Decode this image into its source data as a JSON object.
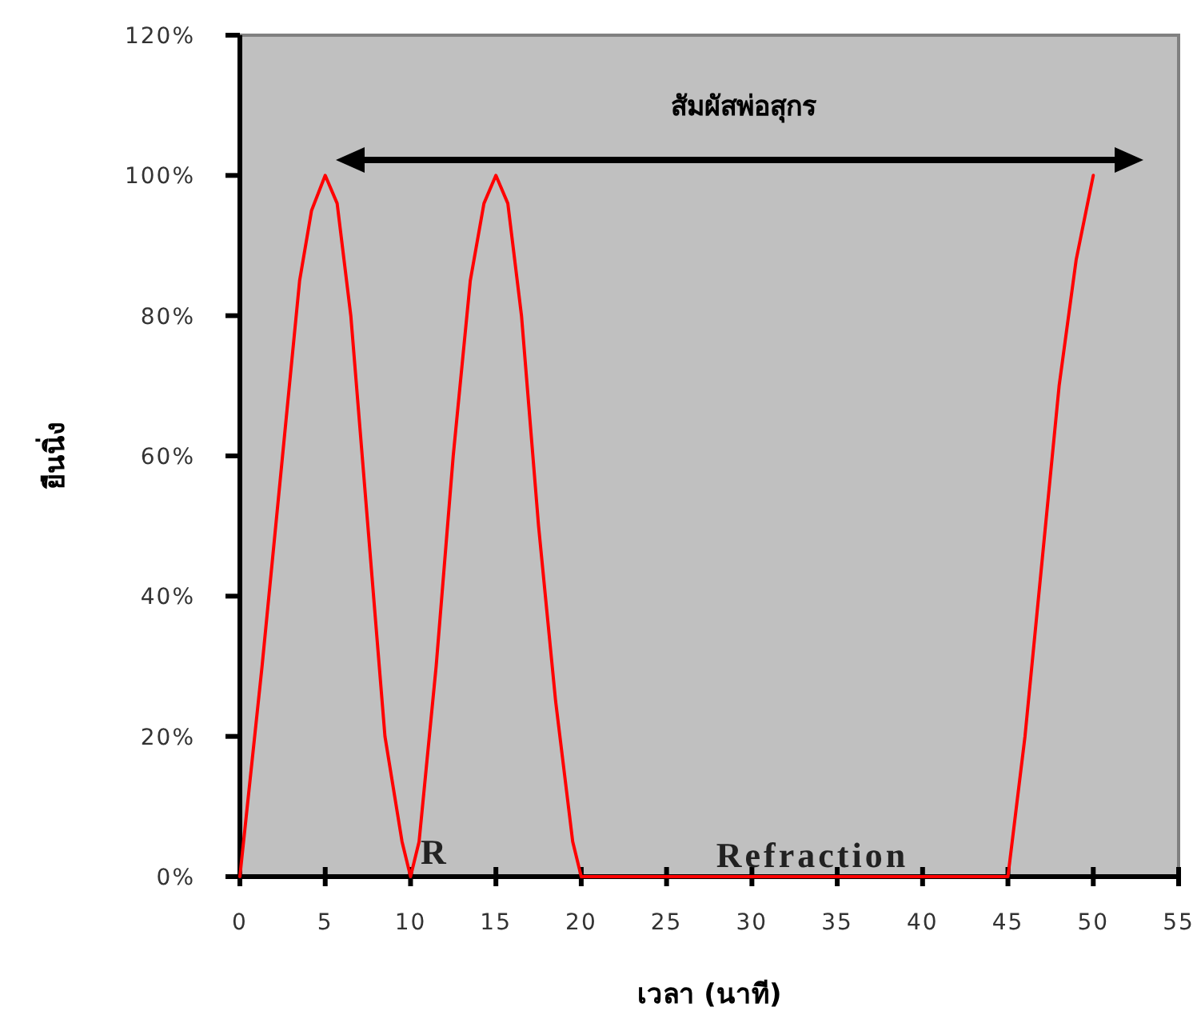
{
  "chart_data": {
    "type": "line",
    "xlabel": "เวลา (นาที)",
    "ylabel": "ยืนนิ่ง",
    "series": [
      {
        "color": "#ff0000",
        "x": [
          0,
          1.3,
          2.5,
          3.5,
          4.2,
          5,
          5.7,
          6.5,
          7.5,
          8.5,
          9.5,
          10,
          10.5,
          11.5,
          12.5,
          13.5,
          14.3,
          15,
          15.7,
          16.5,
          17.5,
          18.5,
          19.5,
          20,
          25,
          40,
          45,
          46,
          47,
          48,
          49,
          50
        ],
        "values": [
          0,
          30,
          60,
          85,
          95,
          100,
          96,
          80,
          50,
          20,
          5,
          0,
          5,
          30,
          60,
          85,
          96,
          100,
          96,
          80,
          50,
          25,
          5,
          0,
          0,
          0,
          0,
          20,
          45,
          70,
          88,
          100
        ]
      }
    ],
    "xlim": [
      0,
      55
    ],
    "xticks": [
      0,
      5,
      10,
      15,
      20,
      25,
      30,
      35,
      40,
      45,
      50,
      55
    ],
    "ylim": [
      0,
      120
    ],
    "yticks": [
      {
        "value": 0,
        "label": "0%"
      },
      {
        "value": 20,
        "label": "20%"
      },
      {
        "value": 40,
        "label": "40%"
      },
      {
        "value": 60,
        "label": "60%"
      },
      {
        "value": 80,
        "label": "80%"
      },
      {
        "value": 100,
        "label": "100%"
      },
      {
        "value": 120,
        "label": "120%"
      }
    ],
    "marker": "none",
    "line_style": "solid",
    "annotations": [
      "สัมผัสพ่อสุกร",
      "R",
      "Refraction"
    ]
  }
}
